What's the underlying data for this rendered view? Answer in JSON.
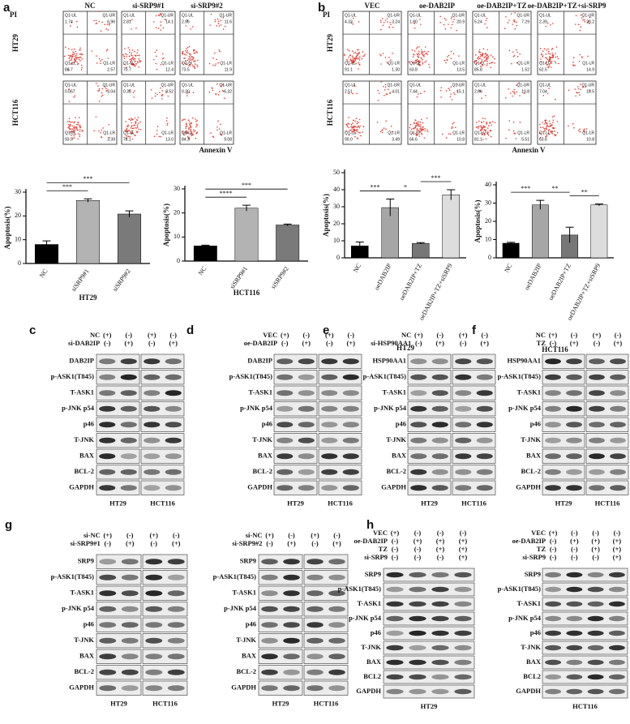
{
  "flow": [
    {
      "label": "a",
      "y_axis": "PI",
      "x_axis": "Annexin V",
      "conditions": [
        "NC",
        "si-SRP9#1",
        "si-SRP9#2"
      ],
      "cell_lines": [
        "HT29",
        "HCT116"
      ],
      "quadrants": [
        "Q1-UL",
        "Q1-UR",
        "Q1-LL",
        "Q1-LR"
      ],
      "values": [
        [
          [
            1.74,
            6.96,
            88.7,
            2.57
          ],
          [
            2.81,
            14.1,
            70.7,
            12.4
          ],
          [
            2.96,
            11.6,
            73.5,
            11.9
          ]
        ],
        [
          [
            0.067,
            3.04,
            93.5,
            3.39
          ],
          [
            0.38,
            8.52,
            78.1,
            {
              "value": 13,
              "label": "13.0"
            }
          ],
          [
            {
              "value": 0.3,
              "label": "0.30"
            },
            6.32,
            84.3,
            9.08
          ]
        ]
      ]
    },
    {
      "label": "b",
      "y_axis": "PI",
      "x_axis": "Annexin V",
      "conditions": [
        "VEC",
        "oe-DAB2IP",
        "oe-DAB2IP+TZ",
        "oe-DAB2IP+TZ+si-SRP9"
      ],
      "cell_lines": [
        "HT29",
        "HCT116"
      ],
      "quadrants": [
        "Q1-UL",
        "Q1-UR",
        "Q1-LL",
        "Q1-LR"
      ],
      "values": [
        [
          [
            4.33,
            3.24,
            91.1,
            {
              "value": 1.3,
              "label": "1.30"
            }
          ],
          [
            {
              "value": 1.8,
              "label": "1.80"
            },
            20.9,
            63.8,
            13.5
          ],
          [
            5.24,
            7.29,
            85.8,
            1.52
          ],
          [
            2.39,
            20.2,
            62.5,
            14.9
          ]
        ],
        [
          [
            2.51,
            4.01,
            {
              "value": 90,
              "label": "90.0"
            },
            3.49
          ],
          [
            7.44,
            15.1,
            66.6,
            10.8
          ],
          [
            2.66,
            10.8,
            81.1,
            5.51
          ],
          [
            7.04,
            18.5,
            63.6,
            10.8
          ]
        ]
      ]
    }
  ],
  "chart_data": [
    {
      "type": "bar",
      "title": "HT29",
      "ylabel": "Apoptosis(%)",
      "categories": [
        "NC",
        "siSRP9#1",
        "siSRP9#2"
      ],
      "values": [
        8,
        26.5,
        20.8
      ],
      "errors": [
        1.5,
        0.7,
        1.3
      ],
      "colors": [
        "#000000",
        "#b3b3b3",
        "#7a7a7a"
      ],
      "ylim": [
        0,
        30
      ],
      "yticks": [
        0,
        10,
        20,
        30
      ],
      "significance": [
        "***",
        "***"
      ]
    },
    {
      "type": "bar",
      "title": "HCT116",
      "ylabel": "Apoptosis(%)",
      "categories": [
        "NC",
        "siSRP9#1",
        "siSRP9#2"
      ],
      "values": [
        6.3,
        22,
        15
      ],
      "errors": [
        0.3,
        1.2,
        0.4
      ],
      "colors": [
        "#000000",
        "#b3b3b3",
        "#7a7a7a"
      ],
      "ylim": [
        0,
        30
      ],
      "yticks": [
        0,
        10,
        20,
        30
      ],
      "significance": [
        "****",
        "***"
      ]
    },
    {
      "type": "bar",
      "title": "HT29",
      "ylabel": "Apoptosis(%)",
      "categories": [
        "NC",
        "oeDAB2IP",
        "oeDAB2IP+TZ",
        "oeDAB2IP+TZ+siSRP9"
      ],
      "values": [
        7,
        29.5,
        8.5,
        37
      ],
      "errors": [
        2.3,
        5,
        0.4,
        3
      ],
      "colors": [
        "#000000",
        "#a6a6a6",
        "#777777",
        "#dddddd"
      ],
      "ylim": [
        0,
        50
      ],
      "yticks": [
        0,
        10,
        20,
        30,
        40,
        50
      ],
      "significance": [
        "***",
        "*",
        "***"
      ]
    },
    {
      "type": "bar",
      "title": "HCT116",
      "ylabel": "Apoptosis(%)",
      "categories": [
        "NC",
        "oeDAB2IP",
        "oeDAB2IP+TZ",
        "oeDAB2IP+TZ+siSRP9"
      ],
      "values": [
        8,
        29,
        12.5,
        29
      ],
      "errors": [
        0.5,
        2.5,
        4.3,
        0.5
      ],
      "colors": [
        "#000000",
        "#a6a6a6",
        "#777777",
        "#dddddd"
      ],
      "ylim": [
        0,
        40
      ],
      "yticks": [
        0,
        10,
        20,
        30,
        40
      ],
      "significance": [
        "***",
        "**",
        "**"
      ]
    }
  ],
  "blots": [
    {
      "label": "c",
      "conditions": [
        {
          "name": "NC",
          "signs": [
            "(+)",
            "(-)",
            "(+)",
            "(-)"
          ]
        },
        {
          "name": "si-DAB2IP",
          "signs": [
            "(-)",
            "(+)",
            "(-)",
            "(+)"
          ]
        }
      ],
      "bands": [
        "DAB2IP",
        "p-ASK1(T845)",
        "T-ASK1",
        "p-JNK  p54",
        "p46",
        "T-JNK",
        "BAX",
        "BCL-2",
        "GAPDH"
      ],
      "cell_lines": [
        "HT29",
        "HCT116"
      ]
    },
    {
      "label": "d",
      "conditions": [
        {
          "name": "VEC",
          "signs": [
            "(+)",
            "(-)",
            "(+)",
            "(-)"
          ]
        },
        {
          "name": "oe-DAB2IP",
          "signs": [
            "(-)",
            "(+)",
            "(-)",
            "(+)"
          ]
        }
      ],
      "bands": [
        "DAB2IP",
        "p-ASK1(T845)",
        "T-ASK1",
        "p-JNK  p54",
        "p46",
        "T-JNK",
        "BAX",
        "BCL-2",
        "GAPDH"
      ],
      "cell_lines": [
        "HT29",
        "HCT116"
      ]
    },
    {
      "label": "e",
      "conditions": [
        {
          "name": "NC",
          "signs": [
            "(+)",
            "(-)",
            "(+)",
            "(-)"
          ]
        },
        {
          "name": "si-HSP90AA1",
          "signs": [
            "(-)",
            "(+)",
            "(-)",
            "(+)"
          ]
        }
      ],
      "bands": [
        "HSP90AA1",
        "p-ASK1(T845)",
        "T-ASK1",
        "p-JNK  p54",
        "p46",
        "T-JNK",
        "BAX",
        "BCL-2",
        "GAPDH"
      ],
      "cell_lines": [
        "HT29",
        "HCT116"
      ]
    },
    {
      "label": "f",
      "conditions": [
        {
          "name": "NC",
          "signs": [
            "(+)",
            "(-)",
            "(+)",
            "(-)"
          ]
        },
        {
          "name": "TZ",
          "signs": [
            "(-)",
            "(+)",
            "(-)",
            "(+)"
          ]
        }
      ],
      "bands": [
        "HSP90AA1",
        "p-ASK1(T845)",
        "T-ASK1",
        "p-JNK  p54",
        "p46",
        "T-JNK",
        "BAX",
        "BCL-2",
        "GAPDH"
      ],
      "cell_lines": [
        "HT29",
        "HCT116"
      ]
    },
    {
      "label": "g",
      "conditions": [
        {
          "name": "si-NC",
          "signs": [
            "(+)",
            "(-)",
            "(+)",
            "(-)"
          ]
        },
        {
          "name": "si-SRP9#1",
          "signs": [
            "(-)",
            "(+)",
            "(-)",
            "(+)"
          ]
        }
      ],
      "bands": [
        "SRP9",
        "p-ASK1(T845)",
        "T-ASK1",
        "p-JNK  p54",
        "p46",
        "T-JNK",
        "BAX",
        "BCL-2",
        "GAPDH"
      ],
      "cell_lines": [
        "HT29",
        "HCT116"
      ]
    },
    {
      "conditions": [
        {
          "name": "si-NC",
          "signs": [
            "(+)",
            "(-)",
            "(+)",
            "(-)"
          ]
        },
        {
          "name": "si-SRP9#2",
          "signs": [
            "(-)",
            "(+)",
            "(-)",
            "(+)"
          ]
        }
      ],
      "bands": [
        "SRP9",
        "p-ASK1(T845)",
        "T-ASK1",
        "p-JNK  p54",
        "p46",
        "T-JNK",
        "BAX",
        "BCL-2",
        "GAPDH"
      ],
      "cell_lines": [
        "HT29",
        "HCT116"
      ]
    },
    {
      "label": "h",
      "conditions": [
        {
          "name": "VEC",
          "signs": [
            "(+)",
            "(-)",
            "(-)",
            "(-)"
          ]
        },
        {
          "name": "oe-DAB2IP",
          "signs": [
            "(-)",
            "(+)",
            "(+)",
            "(+)"
          ]
        },
        {
          "name": "TZ",
          "signs": [
            "(-)",
            "(-)",
            "(+)",
            "(+)"
          ]
        },
        {
          "name": "si-SRP9",
          "signs": [
            "(-)",
            "(-)",
            "(-)",
            "(+)"
          ]
        }
      ],
      "bands": [
        "SRP9",
        "p-ASK1(T845)",
        "T-ASK1",
        "p-JNK  p54",
        "p46",
        "T-JNK",
        "BAX",
        "BCL2",
        "GAPDH"
      ],
      "cell_lines": [
        "HT29"
      ]
    },
    {
      "conditions": [
        {
          "name": "VEC",
          "signs": [
            "(+)",
            "(-)",
            "(-)",
            "(-)"
          ]
        },
        {
          "name": "oe-DAB2IP",
          "signs": [
            "(-)",
            "(+)",
            "(+)",
            "(+)"
          ]
        },
        {
          "name": "TZ",
          "signs": [
            "(-)",
            "(-)",
            "(+)",
            "(+)"
          ]
        },
        {
          "name": "si-SRP9",
          "signs": [
            "(-)",
            "(-)",
            "(-)",
            "(+)"
          ]
        }
      ],
      "bands": [
        "SRP9",
        "p-ASK1(T845)",
        "T-ASK1",
        "p-JNK  p54",
        "p46",
        "T-JNK",
        "BAX",
        "BCL2",
        "GAPDH"
      ],
      "cell_lines": [
        "HCT116"
      ]
    }
  ]
}
